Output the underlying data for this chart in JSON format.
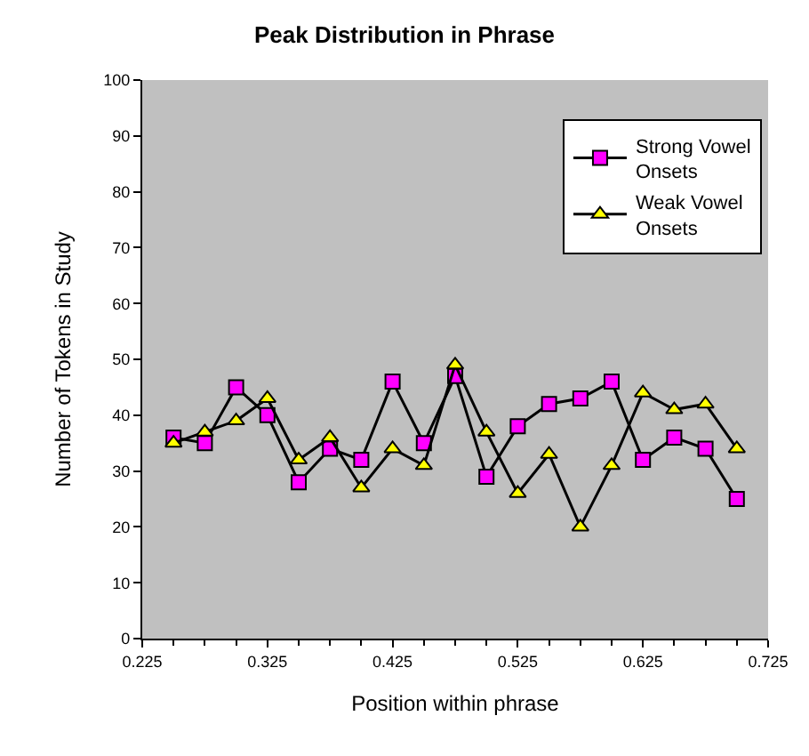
{
  "chart_data": {
    "type": "line",
    "title": "Peak Distribution in Phrase",
    "xlabel": "Position within phrase",
    "ylabel": "Number of Tokens in Study",
    "x": [
      0.25,
      0.275,
      0.3,
      0.325,
      0.35,
      0.375,
      0.4,
      0.425,
      0.45,
      0.475,
      0.5,
      0.525,
      0.55,
      0.575,
      0.6,
      0.625,
      0.65,
      0.675,
      0.7
    ],
    "series": [
      {
        "name": "Strong Vowel Onsets",
        "color": "#ff00ff",
        "marker": "square",
        "values": [
          36,
          35,
          45,
          40,
          28,
          34,
          32,
          46,
          35,
          47,
          29,
          38,
          42,
          43,
          46,
          32,
          36,
          34,
          25
        ]
      },
      {
        "name": "Weak Vowel Onsets",
        "color": "#ffff00",
        "marker": "triangle",
        "values": [
          35,
          37,
          39,
          43,
          32,
          36,
          27,
          34,
          31,
          49,
          37,
          26,
          33,
          20,
          31,
          44,
          41,
          42,
          34
        ]
      }
    ],
    "xlim": [
      0.225,
      0.725
    ],
    "xticks": [
      0.225,
      0.325,
      0.425,
      0.525,
      0.625,
      0.725
    ],
    "ylim": [
      0,
      100
    ],
    "yticks": [
      0,
      10,
      20,
      30,
      40,
      50,
      60,
      70,
      80,
      90,
      100
    ],
    "grid": false,
    "legend": "top right",
    "line_style": "solid"
  }
}
